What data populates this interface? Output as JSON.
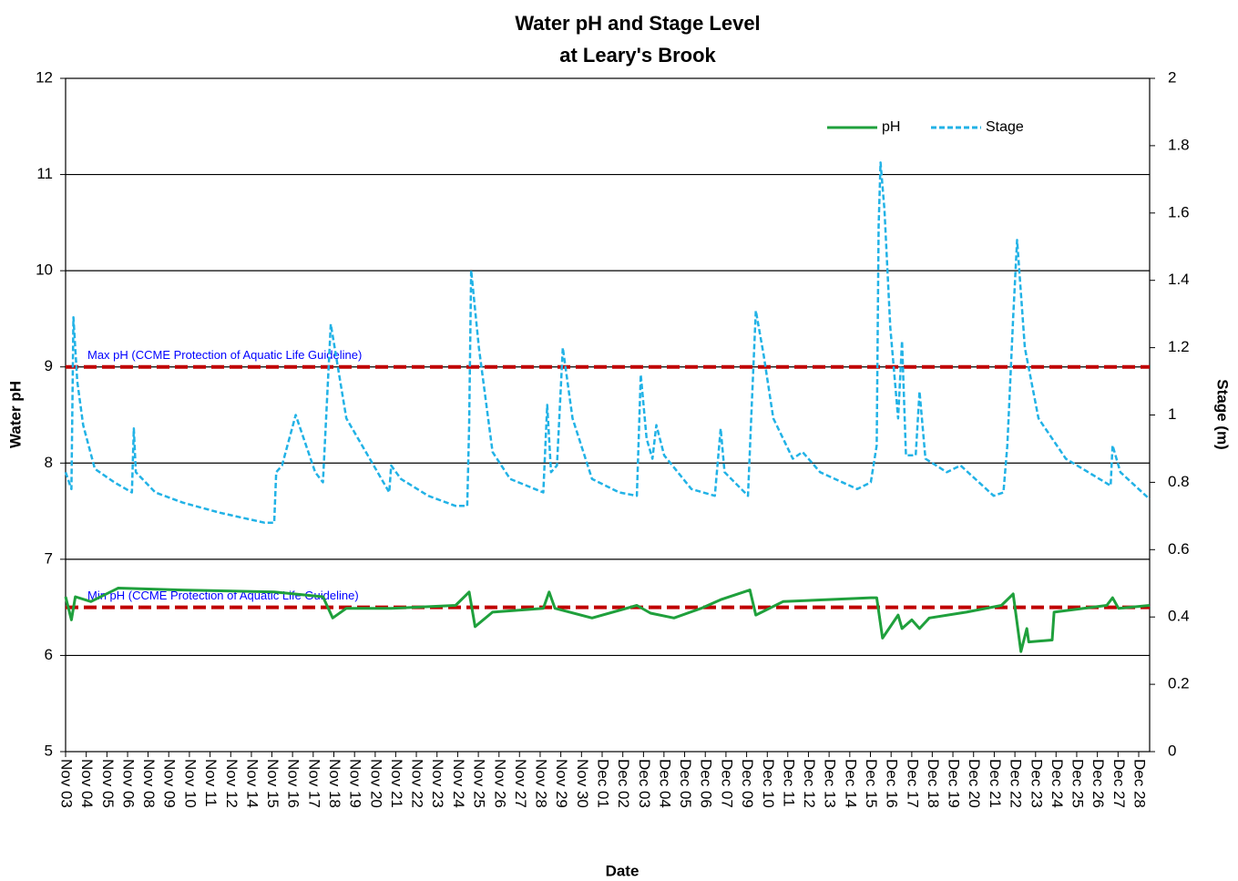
{
  "chart_data": {
    "type": "line",
    "title": [
      "Water pH and Stage Level",
      "at Leary's Brook"
    ],
    "x_label": "Date",
    "y_label": "Water pH",
    "y2_label": "Stage (m)",
    "xlim": [
      0,
      55.6
    ],
    "xticks": [
      {
        "value": 0,
        "label": "Nov 03"
      },
      {
        "value": 1.06,
        "label": "Nov 04"
      },
      {
        "value": 2.12,
        "label": "Nov 05"
      },
      {
        "value": 3.18,
        "label": "Nov 06"
      },
      {
        "value": 4.23,
        "label": "Nov 08"
      },
      {
        "value": 5.29,
        "label": "Nov 09"
      },
      {
        "value": 6.35,
        "label": "Nov 10"
      },
      {
        "value": 7.41,
        "label": "Nov 11"
      },
      {
        "value": 8.47,
        "label": "Nov 12"
      },
      {
        "value": 9.53,
        "label": "Nov 14"
      },
      {
        "value": 10.58,
        "label": "Nov 15"
      },
      {
        "value": 11.64,
        "label": "Nov 16"
      },
      {
        "value": 12.7,
        "label": "Nov 17"
      },
      {
        "value": 13.76,
        "label": "Nov 18"
      },
      {
        "value": 14.82,
        "label": "Nov 19"
      },
      {
        "value": 15.88,
        "label": "Nov 20"
      },
      {
        "value": 16.93,
        "label": "Nov 21"
      },
      {
        "value": 17.99,
        "label": "Nov 22"
      },
      {
        "value": 19.05,
        "label": "Nov 23"
      },
      {
        "value": 20.11,
        "label": "Nov 24"
      },
      {
        "value": 21.17,
        "label": "Nov 25"
      },
      {
        "value": 22.23,
        "label": "Nov 26"
      },
      {
        "value": 23.28,
        "label": "Nov 27"
      },
      {
        "value": 24.34,
        "label": "Nov 28"
      },
      {
        "value": 25.4,
        "label": "Nov 29"
      },
      {
        "value": 26.46,
        "label": "Nov 30"
      },
      {
        "value": 27.52,
        "label": "Dec 01"
      },
      {
        "value": 28.58,
        "label": "Dec 02"
      },
      {
        "value": 29.64,
        "label": "Dec 03"
      },
      {
        "value": 30.69,
        "label": "Dec 04"
      },
      {
        "value": 31.75,
        "label": "Dec 05"
      },
      {
        "value": 32.81,
        "label": "Dec 06"
      },
      {
        "value": 33.87,
        "label": "Dec 07"
      },
      {
        "value": 34.93,
        "label": "Dec 09"
      },
      {
        "value": 35.99,
        "label": "Dec 10"
      },
      {
        "value": 37.04,
        "label": "Dec 11"
      },
      {
        "value": 38.1,
        "label": "Dec 12"
      },
      {
        "value": 39.16,
        "label": "Dec 13"
      },
      {
        "value": 40.22,
        "label": "Dec 14"
      },
      {
        "value": 41.28,
        "label": "Dec 15"
      },
      {
        "value": 42.34,
        "label": "Dec 16"
      },
      {
        "value": 43.4,
        "label": "Dec 17"
      },
      {
        "value": 44.45,
        "label": "Dec 18"
      },
      {
        "value": 45.51,
        "label": "Dec 19"
      },
      {
        "value": 46.57,
        "label": "Dec 20"
      },
      {
        "value": 47.63,
        "label": "Dec 21"
      },
      {
        "value": 48.69,
        "label": "Dec 22"
      },
      {
        "value": 49.75,
        "label": "Dec 23"
      },
      {
        "value": 50.8,
        "label": "Dec 24"
      },
      {
        "value": 51.86,
        "label": "Dec 25"
      },
      {
        "value": 52.92,
        "label": "Dec 26"
      },
      {
        "value": 53.98,
        "label": "Dec 27"
      },
      {
        "value": 55.04,
        "label": "Dec 28"
      }
    ],
    "ylim": [
      5,
      12
    ],
    "yticks": [
      5,
      6,
      7,
      8,
      9,
      10,
      11,
      12
    ],
    "y2lim": [
      0,
      2
    ],
    "y2ticks": [
      0,
      0.2,
      0.4,
      0.6,
      0.8,
      1,
      1.2,
      1.4,
      1.6,
      1.8,
      2
    ],
    "grid": true,
    "legend": "top-right",
    "reference_lines": [
      {
        "value": 9,
        "label": "Max pH (CCME  Protection of Aquatic Life Guideline)",
        "color": "#c00000"
      },
      {
        "value": 6.5,
        "label": "Min pH (CCME  Protection of Aquatic Life Guideline)",
        "color": "#c00000"
      }
    ],
    "series": [
      {
        "name": "pH",
        "color": "#1fa03c",
        "style": "solid",
        "x": [
          0,
          0.3,
          0.5,
          1.3,
          2.7,
          6.0,
          10.7,
          13.2,
          13.7,
          14.4,
          16.7,
          20.0,
          20.7,
          21.0,
          21.9,
          24.5,
          24.8,
          25.1,
          27.0,
          29.3,
          30.0,
          31.2,
          32.6,
          33.6,
          35.1,
          35.4,
          36.8,
          41.3,
          41.6,
          41.9,
          42.7,
          42.9,
          43.4,
          43.8,
          44.3,
          46.2,
          48.0,
          48.6,
          49.0,
          49.3,
          49.4,
          50.6,
          50.7,
          53.4,
          53.7,
          54.0,
          55.6
        ],
        "values": [
          6.61,
          6.37,
          6.61,
          6.56,
          6.7,
          6.68,
          6.66,
          6.61,
          6.39,
          6.49,
          6.49,
          6.52,
          6.66,
          6.3,
          6.45,
          6.49,
          6.66,
          6.49,
          6.39,
          6.52,
          6.44,
          6.39,
          6.49,
          6.58,
          6.68,
          6.42,
          6.56,
          6.6,
          6.6,
          6.18,
          6.42,
          6.28,
          6.37,
          6.28,
          6.39,
          6.45,
          6.52,
          6.64,
          6.04,
          6.28,
          6.14,
          6.16,
          6.45,
          6.52,
          6.6,
          6.49,
          6.52
        ]
      },
      {
        "name": "Stage",
        "color": "#21b2e6",
        "style": "dashed",
        "axis": "y2",
        "x": [
          0,
          0.3,
          0.4,
          0.6,
          0.9,
          1.5,
          2.5,
          3.4,
          3.5,
          3.6,
          4.6,
          6.0,
          7.9,
          10.2,
          10.7,
          10.8,
          11.1,
          11.8,
          12.8,
          13.2,
          13.6,
          14.4,
          15.8,
          16.6,
          16.7,
          17.2,
          18.6,
          20.0,
          20.6,
          20.7,
          20.8,
          21.2,
          21.9,
          22.8,
          24.5,
          24.7,
          24.9,
          25.2,
          25.5,
          26.0,
          27.0,
          28.4,
          29.3,
          29.5,
          29.8,
          30.1,
          30.3,
          30.7,
          32.1,
          33.3,
          33.6,
          33.8,
          35.0,
          35.2,
          35.4,
          35.8,
          36.3,
          37.3,
          37.8,
          38.7,
          40.6,
          41.3,
          41.6,
          41.7,
          41.8,
          42.0,
          42.3,
          42.7,
          42.9,
          43.1,
          43.6,
          43.8,
          44.1,
          45.2,
          45.9,
          47.6,
          48.1,
          48.3,
          48.6,
          48.8,
          49.2,
          49.9,
          51.3,
          53.6,
          53.7,
          54.1,
          55.6
        ],
        "values": [
          0.83,
          0.78,
          1.29,
          1.1,
          0.97,
          0.84,
          0.8,
          0.77,
          0.96,
          0.83,
          0.77,
          0.74,
          0.71,
          0.68,
          0.68,
          0.83,
          0.85,
          1.0,
          0.83,
          0.8,
          1.27,
          0.99,
          0.85,
          0.77,
          0.85,
          0.81,
          0.76,
          0.73,
          0.73,
          0.97,
          1.43,
          1.2,
          0.89,
          0.81,
          0.77,
          1.03,
          0.83,
          0.85,
          1.2,
          0.99,
          0.81,
          0.77,
          0.76,
          1.12,
          0.93,
          0.87,
          0.97,
          0.88,
          0.78,
          0.76,
          0.96,
          0.83,
          0.76,
          1.04,
          1.31,
          1.18,
          0.99,
          0.87,
          0.89,
          0.83,
          0.78,
          0.8,
          0.91,
          1.56,
          1.75,
          1.61,
          1.26,
          0.99,
          1.22,
          0.88,
          0.88,
          1.07,
          0.87,
          0.83,
          0.85,
          0.76,
          0.77,
          0.91,
          1.29,
          1.52,
          1.2,
          0.99,
          0.87,
          0.79,
          0.91,
          0.83,
          0.75
        ]
      }
    ]
  }
}
